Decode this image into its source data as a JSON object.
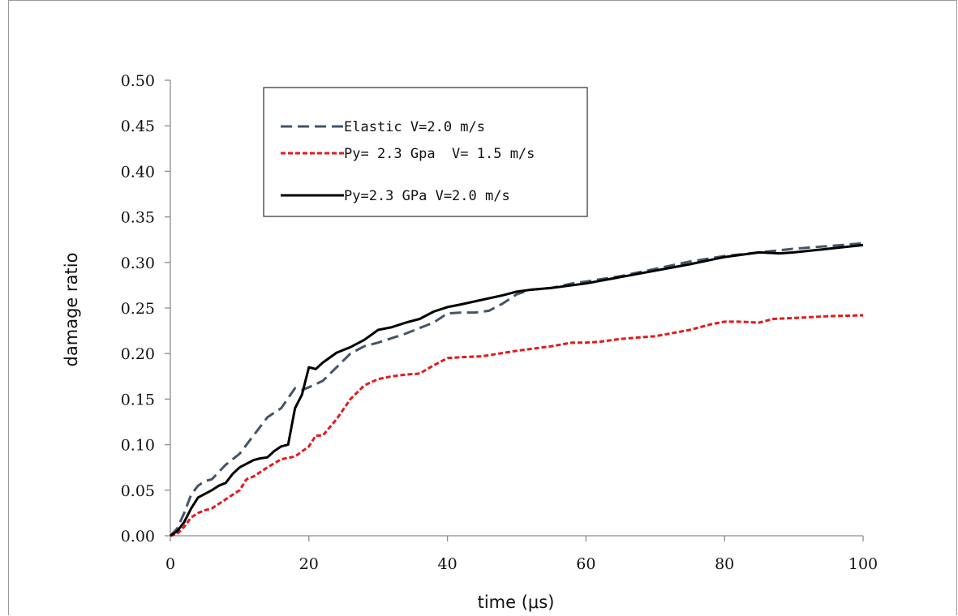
{
  "chart_data": {
    "type": "line",
    "xlabel": "time (μs)",
    "ylabel": "damage ratio",
    "xlim": [
      0,
      100
    ],
    "ylim": [
      0,
      0.5
    ],
    "x_ticks": [
      "0",
      "20",
      "40",
      "60",
      "80",
      "100"
    ],
    "y_ticks": [
      "0.00",
      "0.05",
      "0.10",
      "0.15",
      "0.20",
      "0.25",
      "0.30",
      "0.35",
      "0.40",
      "0.45",
      "0.50"
    ],
    "grid": false,
    "legend_position": "top-left",
    "series": [
      {
        "name": "Elastic V=2.0 m/s",
        "color": "#44546a",
        "dash": "dashed",
        "x": [
          0,
          1,
          2,
          3,
          4,
          5,
          6,
          8,
          10,
          12,
          14,
          16,
          18,
          19,
          20,
          22,
          24,
          26,
          28,
          30,
          32,
          34,
          36,
          38,
          40,
          42,
          44,
          46,
          48,
          50,
          52,
          55,
          58,
          60,
          65,
          70,
          75,
          80,
          85,
          90,
          95,
          100
        ],
        "y": [
          0.0,
          0.008,
          0.025,
          0.045,
          0.055,
          0.06,
          0.062,
          0.078,
          0.09,
          0.11,
          0.13,
          0.14,
          0.162,
          0.16,
          0.163,
          0.17,
          0.185,
          0.2,
          0.208,
          0.212,
          0.217,
          0.222,
          0.228,
          0.234,
          0.244,
          0.245,
          0.245,
          0.247,
          0.255,
          0.265,
          0.27,
          0.272,
          0.277,
          0.279,
          0.285,
          0.293,
          0.301,
          0.307,
          0.311,
          0.315,
          0.318,
          0.321
        ]
      },
      {
        "name": "Py= 2.3 Gpa  V= 1.5 m/s",
        "color": "#e31a1c",
        "dash": "dotted",
        "x": [
          0,
          1,
          2,
          3,
          4,
          5,
          6,
          8,
          10,
          11,
          12,
          14,
          16,
          18,
          20,
          21,
          22,
          24,
          26,
          28,
          30,
          32,
          34,
          36,
          38,
          40,
          42,
          45,
          50,
          55,
          58,
          60,
          62,
          65,
          68,
          70,
          75,
          78,
          80,
          82,
          85,
          87,
          90,
          95,
          100
        ],
        "y": [
          0.0,
          0.002,
          0.01,
          0.02,
          0.025,
          0.028,
          0.03,
          0.04,
          0.05,
          0.062,
          0.065,
          0.075,
          0.084,
          0.087,
          0.098,
          0.11,
          0.11,
          0.128,
          0.15,
          0.165,
          0.172,
          0.175,
          0.177,
          0.178,
          0.187,
          0.195,
          0.196,
          0.197,
          0.203,
          0.208,
          0.212,
          0.212,
          0.213,
          0.216,
          0.218,
          0.219,
          0.226,
          0.232,
          0.235,
          0.235,
          0.234,
          0.238,
          0.239,
          0.241,
          0.242
        ]
      },
      {
        "name": "Py=2.3 GPa V=2.0 m/s",
        "color": "#000000",
        "dash": "solid",
        "x": [
          0,
          1,
          2,
          3,
          4,
          5,
          6,
          7,
          8,
          9,
          10,
          11,
          12,
          13,
          14,
          15,
          16,
          17,
          18,
          19,
          20,
          21,
          22,
          24,
          26,
          28,
          30,
          32,
          34,
          36,
          38,
          40,
          42,
          45,
          48,
          50,
          52,
          55,
          60,
          65,
          70,
          75,
          80,
          85,
          88,
          90,
          95,
          100
        ],
        "y": [
          0.0,
          0.005,
          0.015,
          0.03,
          0.042,
          0.046,
          0.05,
          0.055,
          0.058,
          0.068,
          0.075,
          0.079,
          0.083,
          0.085,
          0.086,
          0.093,
          0.098,
          0.1,
          0.14,
          0.155,
          0.185,
          0.183,
          0.19,
          0.201,
          0.207,
          0.215,
          0.226,
          0.229,
          0.234,
          0.238,
          0.246,
          0.251,
          0.254,
          0.259,
          0.264,
          0.268,
          0.27,
          0.272,
          0.277,
          0.284,
          0.291,
          0.298,
          0.306,
          0.311,
          0.31,
          0.311,
          0.315,
          0.319
        ]
      }
    ]
  }
}
